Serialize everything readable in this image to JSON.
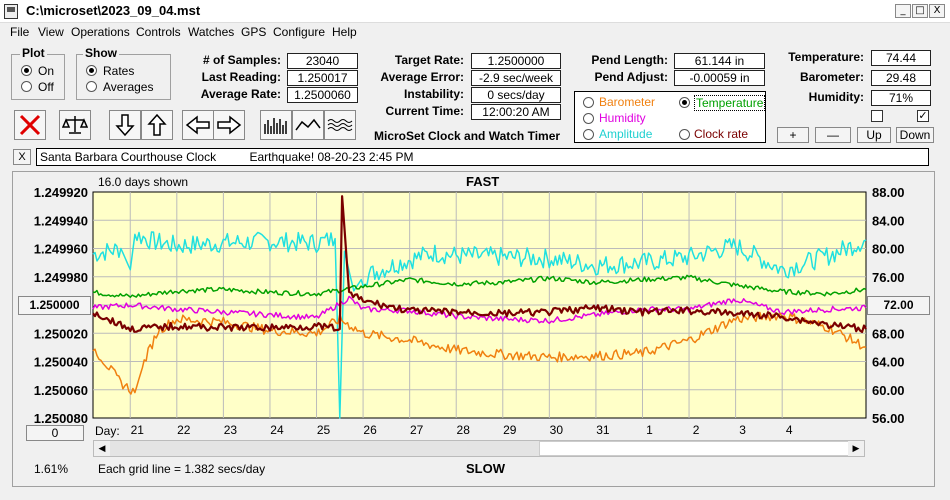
{
  "window": {
    "title": "C:\\microset\\2023_09_04.mst",
    "min": "_",
    "max": "□",
    "close": "X"
  },
  "menu": [
    "File",
    "View",
    "Operations",
    "Controls",
    "Watches",
    "GPS",
    "Configure",
    "Help"
  ],
  "plot": {
    "title": "Plot",
    "on": "On",
    "off": "Off",
    "selected": "On"
  },
  "show": {
    "title": "Show",
    "rates": "Rates",
    "averages": "Averages",
    "selected": "Rates"
  },
  "stats": {
    "samples_label": "# of Samples:",
    "samples": "23040",
    "last_label": "Last Reading:",
    "last": "1.250017",
    "avg_label": "Average Rate:",
    "avg": "1.2500060",
    "target_label": "Target Rate:",
    "target": "1.2500000",
    "err_label": "Average Error:",
    "err": "-2.9 sec/week",
    "inst_label": "Instability:",
    "inst": "0 secs/day",
    "time_label": "Current Time:",
    "time": "12:00:20 AM",
    "pendlen_label": "Pend Length:",
    "pendlen": "61.144 in",
    "pendadj_label": "Pend Adjust:",
    "pendadj": "-0.00059 in",
    "temp_label": "Temperature:",
    "temp": "74.44",
    "baro_label": "Barometer:",
    "baro": "29.48",
    "hum_label": "Humidity:",
    "hum": "71%"
  },
  "app_name": "MicroSet Clock and Watch Timer",
  "series_options": {
    "barometer": "Barometer",
    "temperature": "Temperature",
    "humidity": "Humidity",
    "amplitude": "Amplitude",
    "clock_rate": "Clock rate",
    "selected": "Temperature"
  },
  "scale_buttons": {
    "plus": "+",
    "minus": "—",
    "up": "Up",
    "down": "Down"
  },
  "checkboxes": {
    "left": false,
    "right": true
  },
  "notes": {
    "close": "X",
    "text": "Santa Barbara Courthouse Clock          Earthquake! 08-20-23 2:45 PM"
  },
  "chart": {
    "days_shown": "16.0 days shown",
    "top_label": "FAST",
    "bottom_label": "SLOW",
    "left_btn": "1.250000",
    "right_btn": "72.00",
    "zero_btn": "0",
    "percent": "1.61%",
    "grid_note": "Each grid line = 1.382 secs/day",
    "day_label": "Day:"
  },
  "chart_data": {
    "type": "line",
    "left_axis": {
      "ticks": [
        "1.249920",
        "1.249940",
        "1.249960",
        "1.249980",
        "1.250000",
        "1.250020",
        "1.250040",
        "1.250060",
        "1.250080"
      ],
      "ylim": [
        1.25008,
        1.24992
      ],
      "inverted": true
    },
    "right_axis": {
      "ticks": [
        "88.00",
        "84.00",
        "80.00",
        "76.00",
        "72.00",
        "68.00",
        "64.00",
        "60.00",
        "56.00"
      ],
      "ylim": [
        56,
        88
      ]
    },
    "x_days": [
      "21",
      "22",
      "23",
      "24",
      "25",
      "26",
      "27",
      "28",
      "29",
      "30",
      "31",
      "1",
      "2",
      "3",
      "4"
    ],
    "x_range_days": [
      20.2,
      36.8
    ],
    "series": [
      {
        "name": "Clock rate",
        "color": "#7a0000",
        "axis": "left",
        "x": [
          20.2,
          21,
          22,
          23,
          24,
          25,
          25.5,
          25.55,
          25.7,
          26,
          27,
          28,
          29,
          30,
          31,
          32,
          33,
          34,
          35,
          36,
          36.8
        ],
        "y": [
          1.250005,
          1.250017,
          1.250015,
          1.250016,
          1.250016,
          1.250015,
          1.250017,
          1.249923,
          1.249992,
          1.249997,
          1.250004,
          1.250005,
          1.250006,
          1.250005,
          1.250002,
          1.250005,
          1.250004,
          1.250006,
          1.250008,
          1.250014,
          1.250017
        ]
      },
      {
        "name": "Temperature",
        "color": "#00a000",
        "axis": "right",
        "x": [
          20.2,
          21,
          22,
          23,
          24,
          25,
          26,
          27,
          28,
          29,
          30,
          31,
          32,
          33,
          34,
          35,
          36,
          36.8
        ],
        "y": [
          73.8,
          73.2,
          74.0,
          74.2,
          73.8,
          73.6,
          74.6,
          75.6,
          75.0,
          75.2,
          75.8,
          75.2,
          75.6,
          75.9,
          74.8,
          73.9,
          73.6,
          74.2
        ]
      },
      {
        "name": "Humidity",
        "color": "#e000e0",
        "axis": "right",
        "x": [
          20.2,
          21,
          22,
          23,
          24,
          25,
          25.7,
          26,
          27,
          28,
          29,
          30,
          31,
          32,
          33,
          34,
          35,
          36,
          36.8
        ],
        "y": [
          71.6,
          72.0,
          71.4,
          71.0,
          70.6,
          70.2,
          73.0,
          71.4,
          71.2,
          70.4,
          70.0,
          69.8,
          70.6,
          71.4,
          71.4,
          72.8,
          71.0,
          71.4,
          71.6
        ]
      },
      {
        "name": "Barometer",
        "color": "#f08010",
        "axis": "right",
        "x": [
          20.2,
          20.8,
          21.1,
          21.3,
          21.6,
          22,
          23,
          24,
          25,
          25.5,
          26,
          27,
          28,
          29,
          30,
          31,
          32,
          33,
          34,
          35,
          36,
          36.8
        ],
        "y": [
          66,
          61,
          59.6,
          64,
          68.4,
          70.0,
          69.6,
          68.4,
          68.0,
          70,
          68,
          67,
          65.6,
          65.0,
          64.6,
          64.8,
          65.2,
          67.0,
          70,
          70.6,
          68.8,
          66
        ]
      },
      {
        "name": "Amplitude",
        "color": "#20e0e0",
        "axis": "right",
        "x": [
          20.2,
          20.8,
          21.0,
          21.1,
          21.5,
          22,
          23,
          24,
          25,
          25.4,
          25.5,
          25.6,
          25.8,
          26,
          26.8,
          27.5,
          28,
          29,
          30,
          31,
          32,
          33,
          34,
          35,
          36,
          36.8
        ],
        "y": [
          79.2,
          80,
          77,
          82,
          81,
          80.4,
          80.8,
          81,
          80.8,
          81.4,
          56,
          79.6,
          74,
          76,
          78,
          79.4,
          79,
          78.8,
          78.6,
          77.6,
          78,
          78.8,
          80.4,
          77,
          79,
          81.2
        ]
      }
    ]
  }
}
